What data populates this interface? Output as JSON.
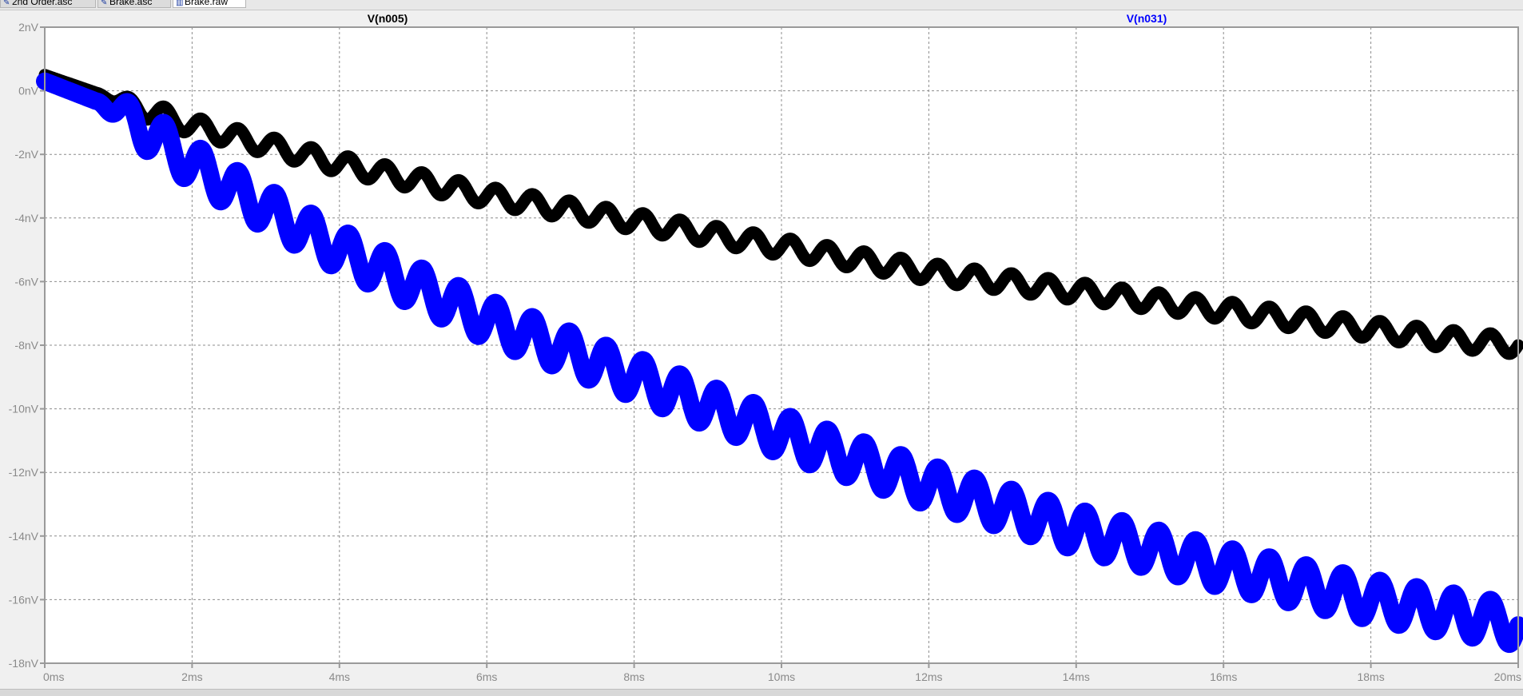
{
  "tabs": [
    {
      "label": "2nd Order.asc",
      "icon": "schematic-icon",
      "active": false
    },
    {
      "label": "Brake.asc",
      "icon": "schematic-icon",
      "active": false
    },
    {
      "label": "Brake.raw",
      "icon": "waveform-icon",
      "active": true
    }
  ],
  "colors": {
    "plot_background": "#ffffff",
    "grid": "#8c8c8c",
    "axis_text": "#8a8a8a",
    "series_1": "#000000",
    "series_2": "#0000ff"
  },
  "chart_data": {
    "type": "line",
    "xlabel": "",
    "ylabel": "",
    "xlim": [
      0,
      20
    ],
    "ylim": [
      -18,
      2
    ],
    "grid": true,
    "x_ticks": [
      "0ms",
      "2ms",
      "4ms",
      "6ms",
      "8ms",
      "10ms",
      "12ms",
      "14ms",
      "16ms",
      "18ms",
      "20ms"
    ],
    "y_ticks": [
      "2nV",
      "0nV",
      "-2nV",
      "-4nV",
      "-6nV",
      "-8nV",
      "-10nV",
      "-12nV",
      "-14nV",
      "-16nV",
      "-18nV"
    ],
    "series": [
      {
        "name": "V(n005)",
        "color": "#000000",
        "x": [
          0,
          1,
          2,
          3,
          4,
          5,
          6,
          7,
          8,
          9,
          10,
          11,
          12,
          13,
          14,
          15,
          16,
          17,
          18,
          19,
          20
        ],
        "y": [
          0.5,
          -0.3,
          -1.1,
          -1.7,
          -2.3,
          -2.8,
          -3.3,
          -3.7,
          -4.1,
          -4.5,
          -4.9,
          -5.3,
          -5.7,
          -6.0,
          -6.3,
          -6.6,
          -6.9,
          -7.2,
          -7.5,
          -7.8,
          -8.0
        ],
        "ripple_amplitude": 0.3,
        "ripple_period": 0.5
      },
      {
        "name": "V(n031)",
        "color": "#0000ff",
        "x": [
          0,
          1,
          2,
          3,
          4,
          5,
          6,
          7,
          8,
          9,
          10,
          11,
          12,
          13,
          14,
          15,
          16,
          17,
          18,
          19,
          20
        ],
        "y": [
          0.3,
          -0.6,
          -2.3,
          -3.7,
          -5.0,
          -6.1,
          -7.2,
          -8.1,
          -9.0,
          -9.9,
          -10.8,
          -11.6,
          -12.4,
          -13.1,
          -13.8,
          -14.4,
          -15.0,
          -15.5,
          -16.0,
          -16.4,
          -16.8
        ],
        "ripple_amplitude": 0.65,
        "ripple_period": 0.5
      }
    ]
  }
}
